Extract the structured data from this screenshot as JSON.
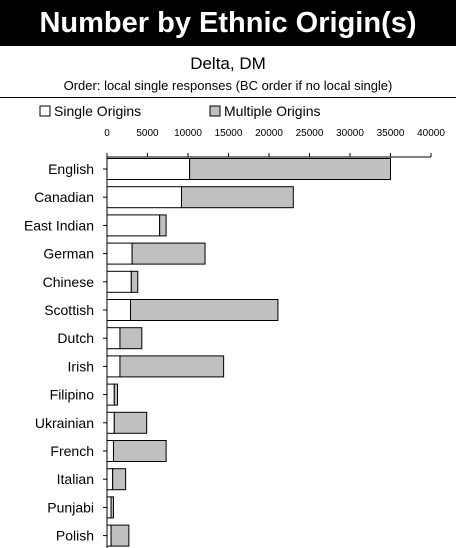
{
  "title": "Number by Ethnic Origin(s)",
  "subtitle": "Delta, DM",
  "order_note": "Order: local single responses (BC order if no local single)",
  "colors": {
    "single": "#ffffff",
    "multiple": "#c0c0c0",
    "stroke": "#000000",
    "title_bg": "#000000"
  },
  "chart_data": {
    "type": "bar",
    "orientation": "horizontal",
    "stacked": true,
    "categories": [
      "English",
      "Canadian",
      "East Indian",
      "German",
      "Chinese",
      "Scottish",
      "Dutch",
      "Irish",
      "Filipino",
      "Ukrainian",
      "French",
      "Italian",
      "Punjabi",
      "Polish"
    ],
    "series": [
      {
        "name": "Single Origins",
        "values": [
          10200,
          9200,
          6500,
          3100,
          3000,
          2900,
          1600,
          1600,
          900,
          900,
          800,
          700,
          500,
          500
        ]
      },
      {
        "name": "Multiple Origins",
        "values": [
          24800,
          13800,
          800,
          9000,
          800,
          18200,
          2700,
          12800,
          400,
          4000,
          6500,
          1600,
          300,
          2200
        ]
      }
    ],
    "x_ticks": [
      "0",
      "5000",
      "10000",
      "15000",
      "20000",
      "25000",
      "30000",
      "35000",
      "40000"
    ],
    "xlim": [
      0,
      40000
    ],
    "legend_position": "top-left"
  }
}
